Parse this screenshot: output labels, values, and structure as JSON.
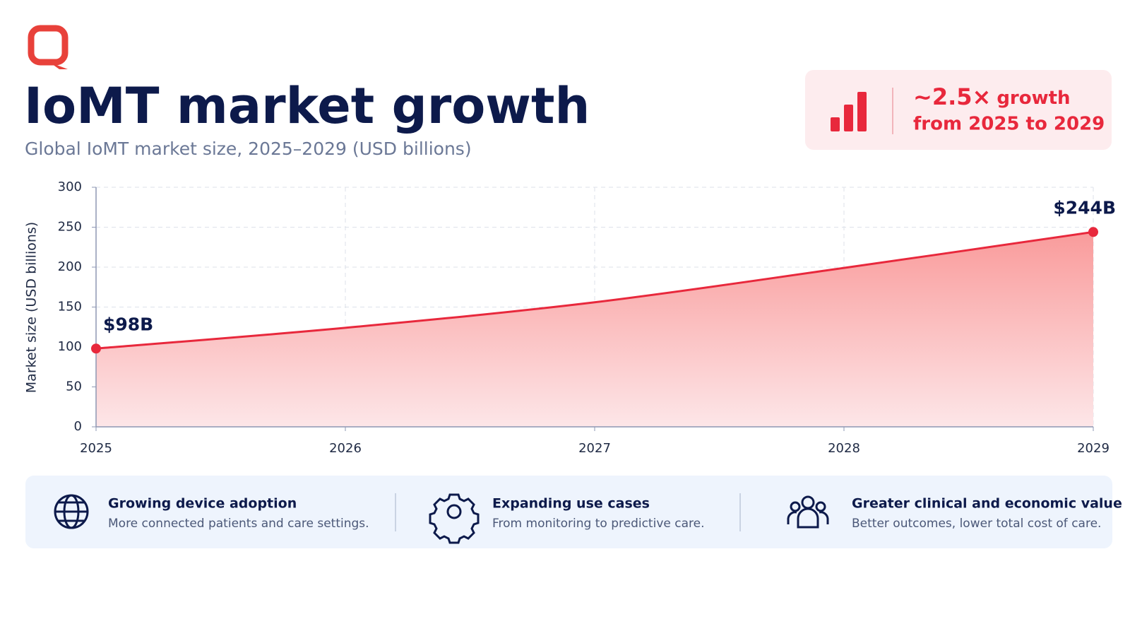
{
  "chart_data": {
    "type": "area",
    "title": "IoMT market growth",
    "subtitle": "Global IoMT market size, 2025–2029 (USD billions)",
    "y_label": "Market size (USD billions)",
    "x": [
      2025,
      2026,
      2027,
      2028,
      2029
    ],
    "values": [
      98,
      124,
      156,
      199,
      244
    ],
    "value_labels": [
      "$98B",
      null,
      null,
      null,
      "$244B"
    ],
    "color": "#e8283c",
    "xlim": [
      2025,
      2029
    ],
    "xticks": [
      2025,
      2026,
      2027,
      2028,
      2029
    ],
    "ylim": [
      0,
      300
    ],
    "yticks": [
      0,
      50,
      100,
      150,
      200,
      250,
      300
    ],
    "grid": true
  },
  "callout": {
    "highlight": "~2.5×",
    "text1": "growth",
    "text2": "from 2025 to 2029"
  },
  "drivers": [
    {
      "title": "Growing device adoption",
      "text": "More connected patients and care settings."
    },
    {
      "title": "Expanding use cases",
      "text": "From monitoring to predictive care."
    },
    {
      "title": "Greater clinical and economic value",
      "text": "Better outcomes, lower total cost of care."
    }
  ]
}
